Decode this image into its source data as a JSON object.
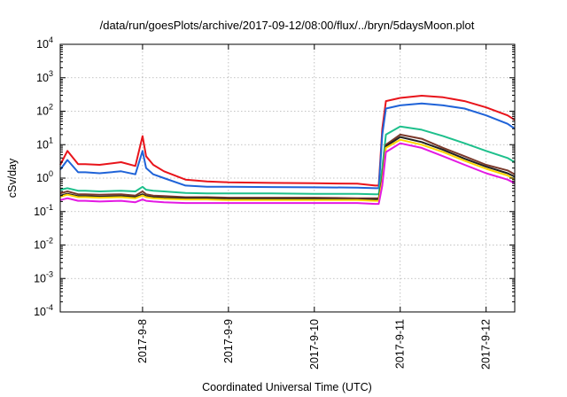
{
  "chart_data": {
    "type": "line",
    "title": "/data/run/goesPlots/archive/2017-09-12/08:00/flux/../bryn/5daysMoon.plot",
    "xlabel": "Coordinated Universal Time (UTC)",
    "ylabel": "cSv/day",
    "x_range": [
      "2017-09-07 01:00",
      "2017-09-12 08:00"
    ],
    "ylim": [
      0.0001,
      10000
    ],
    "yscale": "log",
    "grid": true,
    "x_ticks": [
      {
        "date": "2017-09-08 00:00",
        "label": "2017-9-8"
      },
      {
        "date": "2017-09-09 00:00",
        "label": "2017-9-9"
      },
      {
        "date": "2017-09-10 00:00",
        "label": "2017-9-10"
      },
      {
        "date": "2017-09-11 00:00",
        "label": "2017-9-11"
      },
      {
        "date": "2017-09-12 00:00",
        "label": "2017-9-12"
      }
    ],
    "y_ticks": [
      {
        "value": 0.0001,
        "base": "10",
        "exp": "-4"
      },
      {
        "value": 0.001,
        "base": "10",
        "exp": "-3"
      },
      {
        "value": 0.01,
        "base": "10",
        "exp": "-2"
      },
      {
        "value": 0.1,
        "base": "10",
        "exp": "-1"
      },
      {
        "value": 1,
        "base": "10",
        "exp": "0"
      },
      {
        "value": 10,
        "base": "10",
        "exp": "1"
      },
      {
        "value": 100,
        "base": "10",
        "exp": "2"
      },
      {
        "value": 1000,
        "base": "10",
        "exp": "3"
      },
      {
        "value": 10000,
        "base": "10",
        "exp": "4"
      }
    ],
    "x": [
      "2017-09-07 01:00",
      "2017-09-07 03:00",
      "2017-09-07 06:00",
      "2017-09-07 08:00",
      "2017-09-07 12:00",
      "2017-09-07 18:00",
      "2017-09-07 22:00",
      "2017-09-08 00:00",
      "2017-09-08 01:00",
      "2017-09-08 03:00",
      "2017-09-08 06:00",
      "2017-09-08 12:00",
      "2017-09-08 18:00",
      "2017-09-09 00:00",
      "2017-09-09 12:00",
      "2017-09-10 00:00",
      "2017-09-10 12:00",
      "2017-09-10 17:00",
      "2017-09-10 18:00",
      "2017-09-10 19:00",
      "2017-09-10 20:00",
      "2017-09-11 00:00",
      "2017-09-11 06:00",
      "2017-09-11 12:00",
      "2017-09-11 18:00",
      "2017-09-12 00:00",
      "2017-09-12 06:00",
      "2017-09-12 08:00"
    ],
    "series": [
      {
        "color": "#e8141b",
        "values": [
          2.5,
          6.5,
          2.6,
          2.6,
          2.5,
          3.0,
          2.3,
          18.0,
          4.5,
          2.5,
          1.6,
          0.9,
          0.8,
          0.75,
          0.72,
          0.7,
          0.68,
          0.6,
          0.6,
          30,
          200,
          250,
          290,
          260,
          200,
          130,
          75,
          55
        ]
      },
      {
        "color": "#1f63d8",
        "values": [
          1.8,
          3.5,
          1.5,
          1.5,
          1.4,
          1.6,
          1.3,
          6.5,
          2.0,
          1.3,
          1.0,
          0.6,
          0.55,
          0.55,
          0.54,
          0.53,
          0.52,
          0.5,
          0.5,
          20,
          120,
          150,
          170,
          150,
          120,
          75,
          42,
          30
        ]
      },
      {
        "color": "#1ec08c",
        "values": [
          0.45,
          0.5,
          0.42,
          0.42,
          0.4,
          0.42,
          0.4,
          0.55,
          0.45,
          0.42,
          0.4,
          0.36,
          0.35,
          0.35,
          0.35,
          0.34,
          0.34,
          0.33,
          0.33,
          2,
          20,
          35,
          28,
          18,
          11,
          6.5,
          4,
          3
        ]
      },
      {
        "color": "#7b3a2b",
        "values": [
          0.35,
          0.4,
          0.33,
          0.33,
          0.32,
          0.33,
          0.3,
          0.4,
          0.33,
          0.3,
          0.29,
          0.27,
          0.27,
          0.26,
          0.26,
          0.26,
          0.25,
          0.25,
          0.25,
          1,
          10,
          20,
          15,
          8,
          4.5,
          2.5,
          1.7,
          1.3
        ]
      },
      {
        "color": "#222222",
        "values": [
          0.3,
          0.34,
          0.29,
          0.29,
          0.28,
          0.29,
          0.27,
          0.33,
          0.29,
          0.27,
          0.26,
          0.25,
          0.25,
          0.24,
          0.24,
          0.24,
          0.23,
          0.23,
          0.23,
          0.9,
          9,
          17,
          12,
          7,
          3.8,
          2.2,
          1.4,
          1.1
        ]
      },
      {
        "color": "#ffd700",
        "values": [
          0.28,
          0.32,
          0.27,
          0.27,
          0.26,
          0.27,
          0.25,
          0.3,
          0.27,
          0.25,
          0.24,
          0.23,
          0.23,
          0.22,
          0.22,
          0.22,
          0.22,
          0.21,
          0.21,
          0.8,
          8,
          14,
          10,
          6,
          3.3,
          1.9,
          1.2,
          0.9
        ]
      },
      {
        "color": "#e319e3",
        "values": [
          0.22,
          0.25,
          0.21,
          0.21,
          0.2,
          0.21,
          0.19,
          0.23,
          0.21,
          0.2,
          0.19,
          0.18,
          0.18,
          0.18,
          0.18,
          0.18,
          0.18,
          0.17,
          0.17,
          0.6,
          6,
          11,
          8,
          4.5,
          2.5,
          1.4,
          0.9,
          0.7
        ]
      }
    ]
  }
}
